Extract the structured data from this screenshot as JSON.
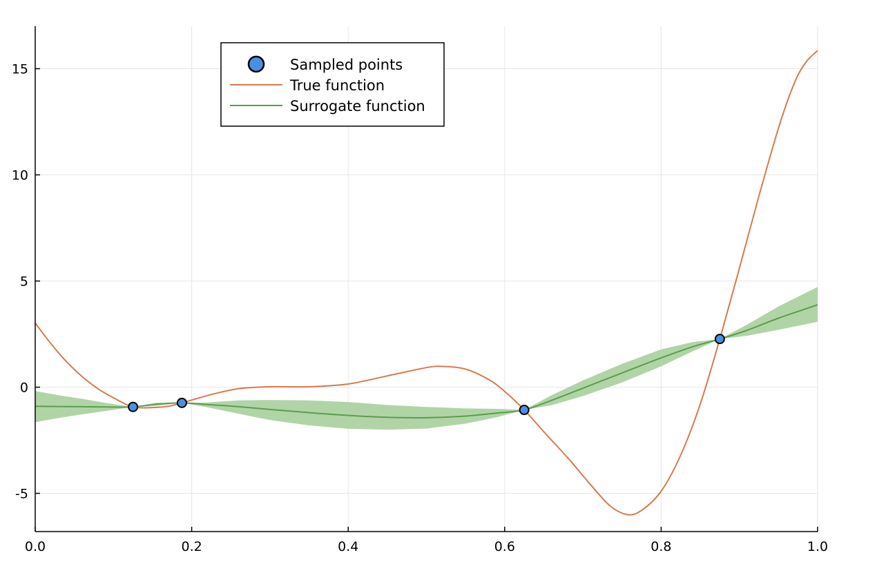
{
  "chart_data": {
    "type": "line",
    "title": "",
    "xlabel": "",
    "ylabel": "",
    "xlim": [
      0.0,
      1.0
    ],
    "ylim": [
      -6.8,
      17.0
    ],
    "grid": true,
    "legend_position": "top",
    "x_ticks": [
      {
        "value": 0.0,
        "label": "0.0"
      },
      {
        "value": 0.2,
        "label": "0.2"
      },
      {
        "value": 0.4,
        "label": "0.4"
      },
      {
        "value": 0.6,
        "label": "0.6"
      },
      {
        "value": 0.8,
        "label": "0.8"
      },
      {
        "value": 1.0,
        "label": "1.0"
      }
    ],
    "y_ticks": [
      {
        "value": -5,
        "label": "-5"
      },
      {
        "value": 0,
        "label": "0"
      },
      {
        "value": 5,
        "label": "5"
      },
      {
        "value": 10,
        "label": "10"
      },
      {
        "value": 15,
        "label": "15"
      }
    ],
    "series": [
      {
        "name": "Sampled points",
        "kind": "scatter",
        "color": "#4a90e2",
        "points": [
          {
            "x": 0.125,
            "y": -0.93
          },
          {
            "x": 0.1875,
            "y": -0.74
          },
          {
            "x": 0.625,
            "y": -1.07
          },
          {
            "x": 0.875,
            "y": 2.27
          }
        ]
      },
      {
        "name": "True function",
        "kind": "line",
        "color": "#d9784d",
        "points": [
          {
            "x": 0.0,
            "y": 3.02
          },
          {
            "x": 0.02,
            "y": 2.05
          },
          {
            "x": 0.04,
            "y": 1.2
          },
          {
            "x": 0.06,
            "y": 0.5
          },
          {
            "x": 0.08,
            "y": -0.07
          },
          {
            "x": 0.1,
            "y": -0.5
          },
          {
            "x": 0.125,
            "y": -0.93
          },
          {
            "x": 0.15,
            "y": -0.96
          },
          {
            "x": 0.17,
            "y": -0.9
          },
          {
            "x": 0.1875,
            "y": -0.74
          },
          {
            "x": 0.21,
            "y": -0.5
          },
          {
            "x": 0.23,
            "y": -0.3
          },
          {
            "x": 0.26,
            "y": -0.07
          },
          {
            "x": 0.3,
            "y": 0.02
          },
          {
            "x": 0.35,
            "y": 0.02
          },
          {
            "x": 0.4,
            "y": 0.15
          },
          {
            "x": 0.45,
            "y": 0.53
          },
          {
            "x": 0.5,
            "y": 0.92
          },
          {
            "x": 0.52,
            "y": 0.98
          },
          {
            "x": 0.55,
            "y": 0.85
          },
          {
            "x": 0.58,
            "y": 0.35
          },
          {
            "x": 0.6,
            "y": -0.2
          },
          {
            "x": 0.625,
            "y": -1.07
          },
          {
            "x": 0.65,
            "y": -2.1
          },
          {
            "x": 0.68,
            "y": -3.3
          },
          {
            "x": 0.71,
            "y": -4.6
          },
          {
            "x": 0.735,
            "y": -5.6
          },
          {
            "x": 0.757,
            "y": -6.0
          },
          {
            "x": 0.775,
            "y": -5.8
          },
          {
            "x": 0.8,
            "y": -4.9
          },
          {
            "x": 0.825,
            "y": -3.2
          },
          {
            "x": 0.85,
            "y": -0.8
          },
          {
            "x": 0.875,
            "y": 2.27
          },
          {
            "x": 0.9,
            "y": 5.6
          },
          {
            "x": 0.925,
            "y": 9.0
          },
          {
            "x": 0.95,
            "y": 12.2
          },
          {
            "x": 0.97,
            "y": 14.3
          },
          {
            "x": 0.985,
            "y": 15.3
          },
          {
            "x": 1.0,
            "y": 15.85
          }
        ]
      },
      {
        "name": "Surrogate function",
        "kind": "line",
        "color": "#5a9e4b",
        "band_color": "#b1d4a7",
        "points": [
          {
            "x": 0.0,
            "y": -0.9,
            "lower": -1.65,
            "upper": -0.18
          },
          {
            "x": 0.03,
            "y": -0.91,
            "lower": -1.45,
            "upper": -0.38
          },
          {
            "x": 0.06,
            "y": -0.92,
            "lower": -1.28,
            "upper": -0.55
          },
          {
            "x": 0.09,
            "y": -0.93,
            "lower": -1.12,
            "upper": -0.74
          },
          {
            "x": 0.125,
            "y": -0.93,
            "lower": -0.93,
            "upper": -0.93
          },
          {
            "x": 0.155,
            "y": -0.8,
            "lower": -0.88,
            "upper": -0.73
          },
          {
            "x": 0.1875,
            "y": -0.74,
            "lower": -0.74,
            "upper": -0.74
          },
          {
            "x": 0.22,
            "y": -0.82,
            "lower": -0.95,
            "upper": -0.72
          },
          {
            "x": 0.26,
            "y": -0.92,
            "lower": -1.25,
            "upper": -0.62
          },
          {
            "x": 0.3,
            "y": -1.05,
            "lower": -1.55,
            "upper": -0.6
          },
          {
            "x": 0.35,
            "y": -1.2,
            "lower": -1.8,
            "upper": -0.62
          },
          {
            "x": 0.4,
            "y": -1.33,
            "lower": -1.96,
            "upper": -0.7
          },
          {
            "x": 0.45,
            "y": -1.42,
            "lower": -2.0,
            "upper": -0.84
          },
          {
            "x": 0.5,
            "y": -1.44,
            "lower": -1.95,
            "upper": -0.93
          },
          {
            "x": 0.55,
            "y": -1.36,
            "lower": -1.72,
            "upper": -1.0
          },
          {
            "x": 0.59,
            "y": -1.22,
            "lower": -1.42,
            "upper": -1.02
          },
          {
            "x": 0.625,
            "y": -1.07,
            "lower": -1.07,
            "upper": -1.07
          },
          {
            "x": 0.66,
            "y": -0.62,
            "lower": -0.85,
            "upper": -0.38
          },
          {
            "x": 0.7,
            "y": -0.05,
            "lower": -0.42,
            "upper": 0.32
          },
          {
            "x": 0.75,
            "y": 0.67,
            "lower": 0.22,
            "upper": 1.1
          },
          {
            "x": 0.8,
            "y": 1.38,
            "lower": 0.98,
            "upper": 1.78
          },
          {
            "x": 0.84,
            "y": 1.9,
            "lower": 1.68,
            "upper": 2.12
          },
          {
            "x": 0.875,
            "y": 2.27,
            "lower": 2.27,
            "upper": 2.27
          },
          {
            "x": 0.91,
            "y": 2.68,
            "lower": 2.42,
            "upper": 2.95
          },
          {
            "x": 0.95,
            "y": 3.25,
            "lower": 2.7,
            "upper": 3.8
          },
          {
            "x": 1.0,
            "y": 3.88,
            "lower": 3.08,
            "upper": 4.72
          }
        ]
      }
    ]
  }
}
